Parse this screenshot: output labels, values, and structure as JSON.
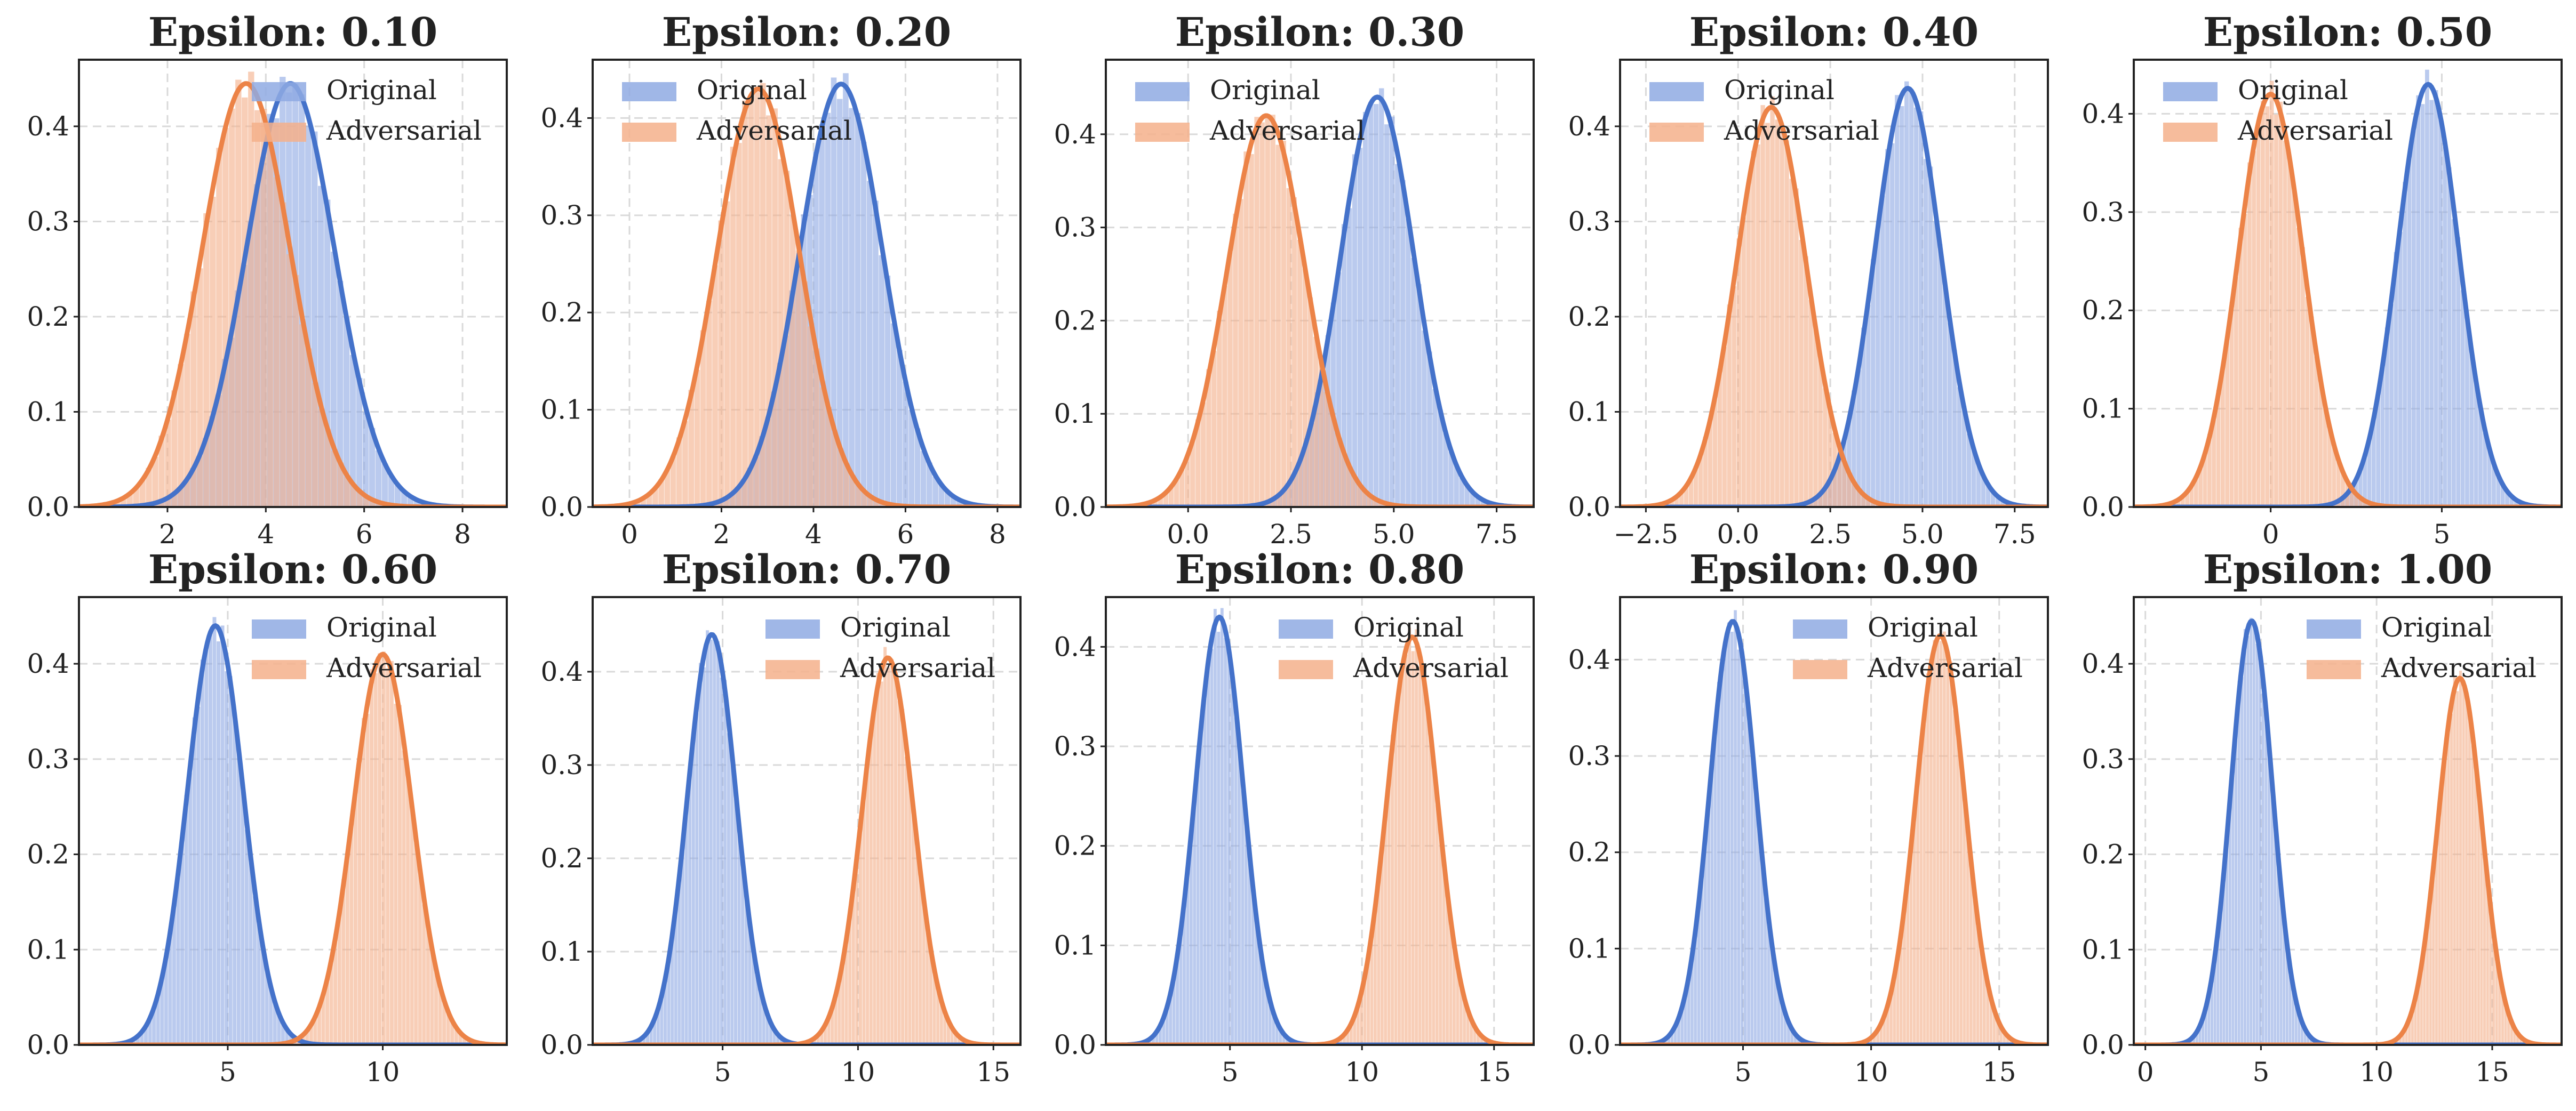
{
  "colors": {
    "original": "#4472CA",
    "original_fill": "#8FAAE3",
    "adversarial": "#EC8347",
    "adversarial_fill": "#F4B08B",
    "grid": "#D9D9D9",
    "axis": "#222222"
  },
  "legend": {
    "original": "Original",
    "adversarial": "Adversarial",
    "placement": [
      "upper-right",
      "upper-left",
      "upper-left",
      "upper-left",
      "upper-left",
      "upper-right",
      "upper-right",
      "upper-right",
      "upper-right",
      "upper-right"
    ]
  },
  "chart_data": [
    {
      "type": "area",
      "title": "Epsilon: 0.10",
      "xlim": [
        0.2,
        8.9
      ],
      "ylim": [
        0,
        0.47
      ],
      "xticks": [
        2,
        4,
        6,
        8
      ],
      "xtick_labels": [
        "2",
        "4",
        "6",
        "8"
      ],
      "yticks": [
        0,
        0.1,
        0.2,
        0.3,
        0.4
      ],
      "ytick_labels": [
        "0.0",
        "0.1",
        "0.2",
        "0.3",
        "0.4"
      ],
      "grid": true,
      "series": [
        {
          "name": "Original",
          "mean": 4.5,
          "sd": 0.9,
          "peak": 0.445
        },
        {
          "name": "Adversarial",
          "mean": 3.6,
          "sd": 0.9,
          "peak": 0.445
        }
      ]
    },
    {
      "type": "area",
      "title": "Epsilon: 0.20",
      "xlim": [
        -0.8,
        8.5
      ],
      "ylim": [
        0,
        0.46
      ],
      "xticks": [
        0,
        2,
        4,
        6,
        8
      ],
      "xtick_labels": [
        "0",
        "2",
        "4",
        "6",
        "8"
      ],
      "yticks": [
        0,
        0.1,
        0.2,
        0.3,
        0.4
      ],
      "ytick_labels": [
        "0.0",
        "0.1",
        "0.2",
        "0.3",
        "0.4"
      ],
      "grid": true,
      "series": [
        {
          "name": "Original",
          "mean": 4.6,
          "sd": 0.9,
          "peak": 0.435
        },
        {
          "name": "Adversarial",
          "mean": 2.8,
          "sd": 0.9,
          "peak": 0.43
        }
      ]
    },
    {
      "type": "area",
      "title": "Epsilon: 0.30",
      "xlim": [
        -2.0,
        8.4
      ],
      "ylim": [
        0,
        0.48
      ],
      "xticks": [
        0,
        2.5,
        5,
        7.5
      ],
      "xtick_labels": [
        "0.0",
        "2.5",
        "5.0",
        "7.5"
      ],
      "yticks": [
        0,
        0.1,
        0.2,
        0.3,
        0.4
      ],
      "ytick_labels": [
        "0.0",
        "0.1",
        "0.2",
        "0.3",
        "0.4"
      ],
      "grid": true,
      "series": [
        {
          "name": "Original",
          "mean": 4.6,
          "sd": 0.9,
          "peak": 0.44
        },
        {
          "name": "Adversarial",
          "mean": 1.9,
          "sd": 0.95,
          "peak": 0.42
        }
      ]
    },
    {
      "type": "area",
      "title": "Epsilon: 0.40",
      "xlim": [
        -3.2,
        8.4
      ],
      "ylim": [
        0,
        0.47
      ],
      "xticks": [
        -2.5,
        0,
        2.5,
        5,
        7.5
      ],
      "xtick_labels": [
        "−2.5",
        "0.0",
        "2.5",
        "5.0",
        "7.5"
      ],
      "yticks": [
        0,
        0.1,
        0.2,
        0.3,
        0.4
      ],
      "ytick_labels": [
        "0.0",
        "0.1",
        "0.2",
        "0.3",
        "0.4"
      ],
      "grid": true,
      "series": [
        {
          "name": "Original",
          "mean": 4.6,
          "sd": 0.9,
          "peak": 0.44
        },
        {
          "name": "Adversarial",
          "mean": 0.9,
          "sd": 0.95,
          "peak": 0.42
        }
      ]
    },
    {
      "type": "area",
      "title": "Epsilon: 0.50",
      "xlim": [
        -4.0,
        8.5
      ],
      "ylim": [
        0,
        0.455
      ],
      "xticks": [
        0,
        5
      ],
      "xtick_labels": [
        "0",
        "5"
      ],
      "yticks": [
        0,
        0.1,
        0.2,
        0.3,
        0.4
      ],
      "ytick_labels": [
        "0.0",
        "0.1",
        "0.2",
        "0.3",
        "0.4"
      ],
      "grid": true,
      "series": [
        {
          "name": "Original",
          "mean": 4.6,
          "sd": 0.9,
          "peak": 0.43
        },
        {
          "name": "Adversarial",
          "mean": 0.0,
          "sd": 0.95,
          "peak": 0.42
        }
      ]
    },
    {
      "type": "area",
      "title": "Epsilon: 0.60",
      "xlim": [
        0.2,
        14.0
      ],
      "ylim": [
        0,
        0.47
      ],
      "xticks": [
        5,
        10
      ],
      "xtick_labels": [
        "5",
        "10"
      ],
      "yticks": [
        0,
        0.1,
        0.2,
        0.3,
        0.4
      ],
      "ytick_labels": [
        "0.0",
        "0.1",
        "0.2",
        "0.3",
        "0.4"
      ],
      "grid": true,
      "series": [
        {
          "name": "Original",
          "mean": 4.6,
          "sd": 0.9,
          "peak": 0.44
        },
        {
          "name": "Adversarial",
          "mean": 10.0,
          "sd": 0.95,
          "peak": 0.41
        }
      ]
    },
    {
      "type": "area",
      "title": "Epsilon: 0.70",
      "xlim": [
        0.2,
        16.0
      ],
      "ylim": [
        0,
        0.48
      ],
      "xticks": [
        5,
        10,
        15
      ],
      "xtick_labels": [
        "5",
        "10",
        "15"
      ],
      "yticks": [
        0,
        0.1,
        0.2,
        0.3,
        0.4
      ],
      "ytick_labels": [
        "0.0",
        "0.1",
        "0.2",
        "0.3",
        "0.4"
      ],
      "grid": true,
      "series": [
        {
          "name": "Original",
          "mean": 4.6,
          "sd": 0.9,
          "peak": 0.44
        },
        {
          "name": "Adversarial",
          "mean": 11.1,
          "sd": 0.95,
          "peak": 0.415
        }
      ]
    },
    {
      "type": "area",
      "title": "Epsilon: 0.80",
      "xlim": [
        0.3,
        16.5
      ],
      "ylim": [
        0,
        0.45
      ],
      "xticks": [
        5,
        10,
        15
      ],
      "xtick_labels": [
        "5",
        "10",
        "15"
      ],
      "yticks": [
        0,
        0.1,
        0.2,
        0.3,
        0.4
      ],
      "ytick_labels": [
        "0.0",
        "0.1",
        "0.2",
        "0.3",
        "0.4"
      ],
      "grid": true,
      "series": [
        {
          "name": "Original",
          "mean": 4.6,
          "sd": 0.9,
          "peak": 0.43
        },
        {
          "name": "Adversarial",
          "mean": 11.9,
          "sd": 0.95,
          "peak": 0.41
        }
      ]
    },
    {
      "type": "area",
      "title": "Epsilon: 0.90",
      "xlim": [
        0.2,
        16.9
      ],
      "ylim": [
        0,
        0.465
      ],
      "xticks": [
        5,
        10,
        15
      ],
      "xtick_labels": [
        "5",
        "10",
        "15"
      ],
      "yticks": [
        0,
        0.1,
        0.2,
        0.3,
        0.4
      ],
      "ytick_labels": [
        "0.0",
        "0.1",
        "0.2",
        "0.3",
        "0.4"
      ],
      "grid": true,
      "series": [
        {
          "name": "Original",
          "mean": 4.6,
          "sd": 0.9,
          "peak": 0.44
        },
        {
          "name": "Adversarial",
          "mean": 12.7,
          "sd": 0.95,
          "peak": 0.425
        }
      ]
    },
    {
      "type": "area",
      "title": "Epsilon: 1.00",
      "xlim": [
        -0.5,
        18.0
      ],
      "ylim": [
        0,
        0.47
      ],
      "xticks": [
        0,
        5,
        10,
        15
      ],
      "xtick_labels": [
        "0",
        "5",
        "10",
        "15"
      ],
      "yticks": [
        0,
        0.1,
        0.2,
        0.3,
        0.4
      ],
      "ytick_labels": [
        "0.0",
        "0.1",
        "0.2",
        "0.3",
        "0.4"
      ],
      "grid": true,
      "series": [
        {
          "name": "Original",
          "mean": 4.6,
          "sd": 0.9,
          "peak": 0.445
        },
        {
          "name": "Adversarial",
          "mean": 13.6,
          "sd": 0.95,
          "peak": 0.385
        }
      ]
    }
  ]
}
